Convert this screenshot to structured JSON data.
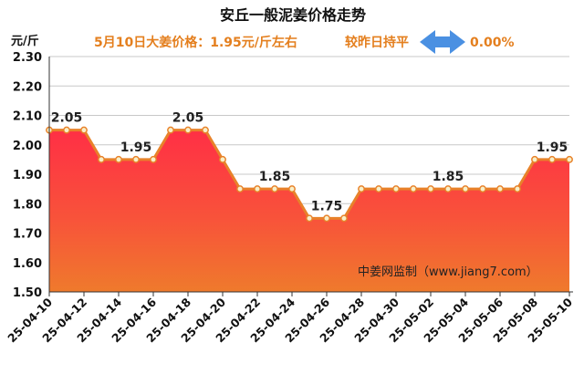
{
  "chart_data": {
    "type": "area",
    "title": "安丘一般泥姜价格走势",
    "subtitle": "5月10日大姜价格：1.95元/斤左右",
    "change_text": "较昨日持平",
    "change_value": "0.00%",
    "ylabel": "元/斤",
    "ylim": [
      1.5,
      2.3
    ],
    "yticks": [
      "1.50",
      "1.60",
      "1.70",
      "1.80",
      "1.90",
      "2.00",
      "2.10",
      "2.20",
      "2.30"
    ],
    "x_tick_labels": [
      "25-04-10",
      "25-04-12",
      "25-04-14",
      "25-04-16",
      "25-04-18",
      "25-04-20",
      "25-04-22",
      "25-04-24",
      "25-04-26",
      "25-04-28",
      "25-04-30",
      "25-05-02",
      "25-05-04",
      "25-05-06",
      "25-05-08",
      "25-05-10"
    ],
    "dates": [
      "04-10",
      "04-11",
      "04-12",
      "04-13",
      "04-14",
      "04-15",
      "04-16",
      "04-17",
      "04-18",
      "04-19",
      "04-20",
      "04-21",
      "04-22",
      "04-23",
      "04-24",
      "04-25",
      "04-26",
      "04-27",
      "04-28",
      "04-29",
      "04-30",
      "05-01",
      "05-02",
      "05-03",
      "05-04",
      "05-05",
      "05-06",
      "05-07",
      "05-08",
      "05-09",
      "05-10"
    ],
    "values": [
      2.05,
      2.05,
      2.05,
      1.95,
      1.95,
      1.95,
      1.95,
      2.05,
      2.05,
      2.05,
      1.95,
      1.85,
      1.85,
      1.85,
      1.85,
      1.75,
      1.75,
      1.75,
      1.85,
      1.85,
      1.85,
      1.85,
      1.85,
      1.85,
      1.85,
      1.85,
      1.85,
      1.85,
      1.95,
      1.95,
      1.95
    ],
    "data_labels": [
      {
        "index": 1,
        "text": "2.05"
      },
      {
        "index": 5,
        "text": "1.95"
      },
      {
        "index": 8,
        "text": "2.05"
      },
      {
        "index": 13,
        "text": "1.85"
      },
      {
        "index": 16,
        "text": "1.75"
      },
      {
        "index": 23,
        "text": "1.85"
      },
      {
        "index": 29,
        "text": "1.95"
      }
    ],
    "watermark": "中姜网监制（www.jiang7.com）",
    "colors": {
      "line": "#e8822a",
      "fill_top": "#ff2f45",
      "fill_bottom": "#ef7a2c",
      "point_fill": "#f8efc8",
      "arrow": "#4a90e2"
    }
  }
}
